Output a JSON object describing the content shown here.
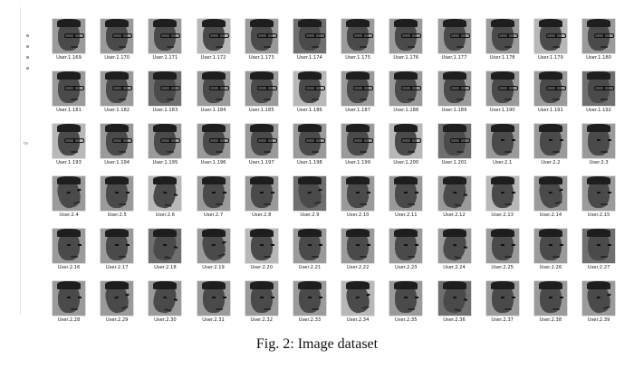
{
  "figure": {
    "caption": "Fig. 2: Image dataset"
  },
  "nav": {
    "label": "te"
  },
  "files": [
    {
      "label": "User.1.169",
      "glasses": true
    },
    {
      "label": "User.1.170",
      "glasses": true
    },
    {
      "label": "User.1.171",
      "glasses": true
    },
    {
      "label": "User.1.172",
      "glasses": true
    },
    {
      "label": "User.1.173",
      "glasses": true
    },
    {
      "label": "User.1.174",
      "glasses": true
    },
    {
      "label": "User.1.175",
      "glasses": true
    },
    {
      "label": "User.1.176",
      "glasses": true
    },
    {
      "label": "User.1.177",
      "glasses": true
    },
    {
      "label": "User.1.178",
      "glasses": true
    },
    {
      "label": "User.1.179",
      "glasses": true
    },
    {
      "label": "User.1.180",
      "glasses": true
    },
    {
      "label": "User.1.181",
      "glasses": true
    },
    {
      "label": "User.1.182",
      "glasses": true
    },
    {
      "label": "User.1.183",
      "glasses": true
    },
    {
      "label": "User.1.184",
      "glasses": true
    },
    {
      "label": "User.1.185",
      "glasses": true
    },
    {
      "label": "User.1.186",
      "glasses": true
    },
    {
      "label": "User.1.187",
      "glasses": true
    },
    {
      "label": "User.1.188",
      "glasses": true
    },
    {
      "label": "User.1.189",
      "glasses": true
    },
    {
      "label": "User.1.190",
      "glasses": true
    },
    {
      "label": "User.1.191",
      "glasses": true
    },
    {
      "label": "User.1.192",
      "glasses": true
    },
    {
      "label": "User.1.193",
      "glasses": true
    },
    {
      "label": "User.1.194",
      "glasses": true
    },
    {
      "label": "User.1.195",
      "glasses": true
    },
    {
      "label": "User.1.196",
      "glasses": true
    },
    {
      "label": "User.1.197",
      "glasses": true
    },
    {
      "label": "User.1.198",
      "glasses": true
    },
    {
      "label": "User.1.199",
      "glasses": true
    },
    {
      "label": "User.1.200",
      "glasses": true
    },
    {
      "label": "User.1.201",
      "glasses": true
    },
    {
      "label": "User.2.1",
      "glasses": false
    },
    {
      "label": "User.2.2",
      "glasses": false
    },
    {
      "label": "User.2.3",
      "glasses": false
    },
    {
      "label": "User.2.4",
      "glasses": false
    },
    {
      "label": "User.2.5",
      "glasses": false
    },
    {
      "label": "User.2.6",
      "glasses": false
    },
    {
      "label": "User.2.7",
      "glasses": false
    },
    {
      "label": "User.2.8",
      "glasses": false
    },
    {
      "label": "User.2.9",
      "glasses": false
    },
    {
      "label": "User.2.10",
      "glasses": false
    },
    {
      "label": "User.2.11",
      "glasses": false
    },
    {
      "label": "User.2.12",
      "glasses": false
    },
    {
      "label": "User.2.13",
      "glasses": false
    },
    {
      "label": "User.2.14",
      "glasses": false
    },
    {
      "label": "User.2.15",
      "glasses": false
    },
    {
      "label": "User.2.16",
      "glasses": false
    },
    {
      "label": "User.2.17",
      "glasses": false
    },
    {
      "label": "User.2.18",
      "glasses": false
    },
    {
      "label": "User.2.19",
      "glasses": false
    },
    {
      "label": "User.2.20",
      "glasses": false
    },
    {
      "label": "User.2.21",
      "glasses": false
    },
    {
      "label": "User.2.22",
      "glasses": false
    },
    {
      "label": "User.2.23",
      "glasses": false
    },
    {
      "label": "User.2.24",
      "glasses": false
    },
    {
      "label": "User.2.25",
      "glasses": false
    },
    {
      "label": "User.2.26",
      "glasses": false
    },
    {
      "label": "User.2.27",
      "glasses": false
    },
    {
      "label": "User.2.28",
      "glasses": false
    },
    {
      "label": "User.2.29",
      "glasses": false
    },
    {
      "label": "User.2.30",
      "glasses": false
    },
    {
      "label": "User.2.31",
      "glasses": false
    },
    {
      "label": "User.2.32",
      "glasses": false
    },
    {
      "label": "User.2.33",
      "glasses": false
    },
    {
      "label": "User.2.34",
      "glasses": false
    },
    {
      "label": "User.2.35",
      "glasses": false
    },
    {
      "label": "User.2.36",
      "glasses": false
    },
    {
      "label": "User.2.37",
      "glasses": false
    },
    {
      "label": "User.2.38",
      "glasses": false
    },
    {
      "label": "User.2.39",
      "glasses": false
    }
  ]
}
